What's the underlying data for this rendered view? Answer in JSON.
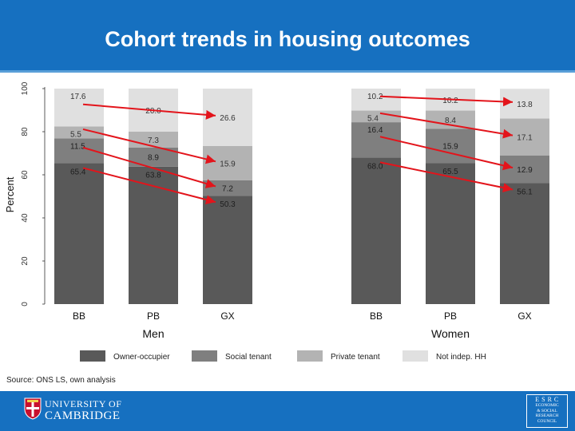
{
  "title": "Cohort trends in housing outcomes",
  "source": "Source: ONS LS, own analysis",
  "footer": {
    "university_line1": "UNIVERSITY OF",
    "university_line2": "CAMBRIDGE",
    "esrc_top": "E S R C",
    "esrc_lines": [
      "ECONOMIC",
      "& SOCIAL",
      "RESEARCH",
      "COUNCIL"
    ]
  },
  "colors": {
    "header": "#1670c0",
    "owner": "#595959",
    "social": "#7f7f7f",
    "private": "#b3b3b3",
    "notindep": "#e0e0e0",
    "arrow": "#e3141b"
  },
  "chart_data": {
    "type": "bar",
    "stacked": true,
    "ylabel": "Percent",
    "ylim": [
      0,
      100
    ],
    "yticks": [
      0,
      20,
      40,
      60,
      80,
      100
    ],
    "groups": [
      "Men",
      "Women"
    ],
    "categories": [
      "BB",
      "PB",
      "GX"
    ],
    "series": [
      {
        "name": "Owner-occupier",
        "color": "#595959",
        "values": {
          "Men": [
            65.4,
            63.8,
            50.3
          ],
          "Women": [
            68.0,
            65.5,
            56.1
          ]
        },
        "labels": {
          "Men": [
            "65.4",
            "63.8",
            "50.3"
          ],
          "Women": [
            "68.0",
            "65.5",
            "56.1"
          ]
        }
      },
      {
        "name": "Social tenant",
        "color": "#7f7f7f",
        "values": {
          "Men": [
            11.5,
            8.9,
            7.2
          ],
          "Women": [
            16.4,
            15.9,
            12.9
          ]
        },
        "labels": {
          "Men": [
            "11.5",
            "8.9",
            "7.2"
          ],
          "Women": [
            "16.4",
            "15.9",
            "12.9"
          ]
        }
      },
      {
        "name": "Private tenant",
        "color": "#b3b3b3",
        "values": {
          "Men": [
            5.5,
            7.3,
            15.9
          ],
          "Women": [
            5.4,
            8.4,
            17.1
          ]
        },
        "labels": {
          "Men": [
            "5.5",
            "7.3",
            "15.9"
          ],
          "Women": [
            "5.4",
            "8.4",
            "17.1"
          ]
        }
      },
      {
        "name": "Not indep. HH",
        "color": "#e0e0e0",
        "values": {
          "Men": [
            17.6,
            20.0,
            26.6
          ],
          "Women": [
            10.2,
            10.2,
            13.8
          ]
        },
        "labels": {
          "Men": [
            "17.6",
            "20.0",
            "26.6"
          ],
          "Women": [
            "10.2",
            "10.2",
            "13.8"
          ]
        }
      }
    ],
    "legend_position": "bottom",
    "grid": false,
    "annotations": "red arrows trace each tenure segment from BB to GX within each sex"
  }
}
